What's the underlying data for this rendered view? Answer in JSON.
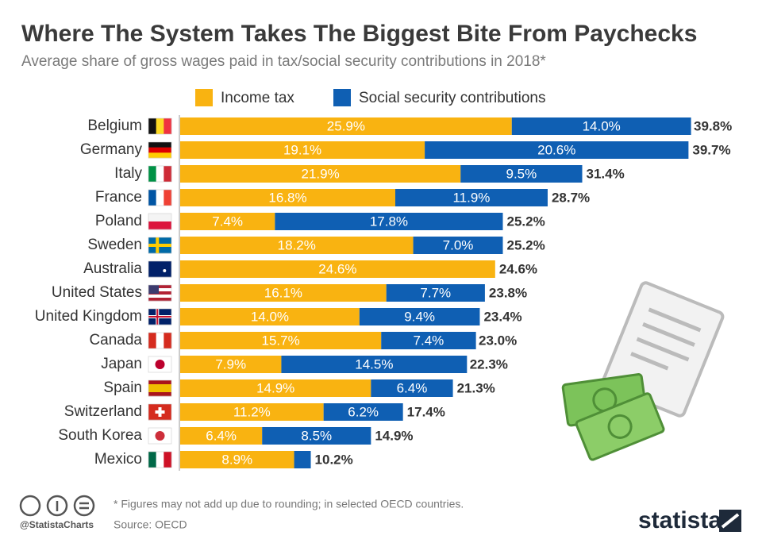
{
  "chart_data": {
    "type": "stacked-bar-horizontal",
    "title": "Where The System Takes The Biggest Bite From Paychecks",
    "subtitle": "Average share of gross wages paid in tax/social security contributions in 2018*",
    "categories": [
      "Belgium",
      "Germany",
      "Italy",
      "France",
      "Poland",
      "Sweden",
      "Australia",
      "United States",
      "United Kingdom",
      "Canada",
      "Japan",
      "Spain",
      "Switzerland",
      "South Korea",
      "Mexico"
    ],
    "series": [
      {
        "name": "Income tax",
        "color": "#f9b311",
        "values": [
          25.9,
          19.1,
          21.9,
          16.8,
          7.4,
          18.2,
          24.6,
          16.1,
          14.0,
          15.7,
          7.9,
          14.9,
          11.2,
          6.4,
          8.9
        ],
        "value_labels": [
          "25.9%",
          "19.1%",
          "21.9%",
          "16.8%",
          "7.4%",
          "18.2%",
          "24.6%",
          "16.1%",
          "14.0%",
          "15.7%",
          "7.9%",
          "14.9%",
          "11.2%",
          "6.4%",
          "8.9%"
        ]
      },
      {
        "name": "Social security contributions",
        "color": "#0f5fb3",
        "values": [
          14.0,
          20.6,
          9.5,
          11.9,
          17.8,
          7.0,
          0,
          7.7,
          9.4,
          7.4,
          14.5,
          6.4,
          6.2,
          8.5,
          1.3
        ],
        "value_labels": [
          "14.0%",
          "20.6%",
          "9.5%",
          "11.9%",
          "17.8%",
          "7.0%",
          null,
          "7.7%",
          "9.4%",
          "7.4%",
          "14.5%",
          "6.4%",
          "6.2%",
          "8.5%",
          null
        ]
      }
    ],
    "totals": [
      39.8,
      39.7,
      31.4,
      28.7,
      25.2,
      25.2,
      24.6,
      23.8,
      23.4,
      23.0,
      22.3,
      21.3,
      17.4,
      14.9,
      10.2
    ],
    "total_labels": [
      "39.8%",
      "39.7%",
      "31.4%",
      "28.7%",
      "25.2%",
      "25.2%",
      "24.6%",
      "23.8%",
      "23.4%",
      "23.0%",
      "22.3%",
      "21.3%",
      "17.4%",
      "14.9%",
      "10.2%"
    ],
    "footnote": "* Figures may not add up due to rounding; in selected OECD countries.",
    "source": "Source: OECD",
    "handle": "@StatistaCharts",
    "brand": "statista"
  }
}
